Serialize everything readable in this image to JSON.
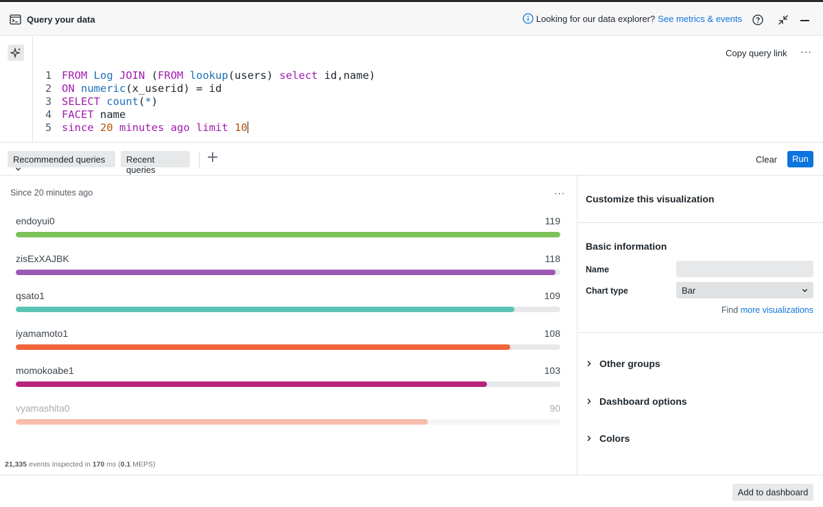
{
  "header": {
    "title": "Query your data",
    "info_text": "Looking for our data explorer?",
    "info_link": "See metrics & events"
  },
  "editor": {
    "copy_link": "Copy query link",
    "more": "···",
    "lines": [
      {
        "n": "1"
      },
      {
        "n": "2"
      },
      {
        "n": "3"
      },
      {
        "n": "4"
      },
      {
        "n": "5"
      }
    ],
    "tokens": {
      "l1a": "FROM",
      "l1b": "Log",
      "l1c": "JOIN",
      "l1d": "(",
      "l1e": "FROM",
      "l1f": "lookup",
      "l1g": "(users)",
      "l1h": "select",
      "l1i": "id,name)",
      "l2a": "ON",
      "l2b": "numeric",
      "l2c": "(x_userid) = id",
      "l3a": "SELECT",
      "l3b": "count",
      "l3c": "(",
      "l3d": "*",
      "l3e": ")",
      "l4a": "FACET",
      "l4b": "name",
      "l5a": "since",
      "l5b": "20",
      "l5c": "minutes",
      "l5d": "ago",
      "l5e": "limit",
      "l5f": "10"
    }
  },
  "toolbar": {
    "recommended": "Recommended queries",
    "recent": "Recent queries",
    "clear": "Clear",
    "run": "Run"
  },
  "chart": {
    "since": "Since 20 minutes ago",
    "more": "···",
    "stats": {
      "events": "21,335",
      "events_suffix": "events inspected in",
      "ms": "170",
      "ms_suffix": "ms (",
      "meps": "0.1",
      "meps_suffix": "MEPS)"
    }
  },
  "chart_data": {
    "type": "bar",
    "title": "",
    "xlabel": "",
    "ylabel": "",
    "categories": [
      "endoyui0",
      "zisExXAJBK",
      "qsato1",
      "iyamamoto1",
      "momokoabe1",
      "vyamashita0"
    ],
    "values": [
      119,
      118,
      109,
      108,
      103,
      90
    ],
    "ylim": [
      0,
      119
    ],
    "colors": [
      "#7bc25a",
      "#9b59b6",
      "#5bc4b4",
      "#f2653d",
      "#b8237b",
      "#f5a58f"
    ]
  },
  "customize": {
    "title": "Customize this visualization",
    "basic": "Basic information",
    "name_label": "Name",
    "name_value": "",
    "type_label": "Chart type",
    "type_value": "Bar",
    "find_text": "Find",
    "find_link": "more visualizations",
    "groups": [
      "Other groups",
      "Dashboard options",
      "Colors"
    ]
  },
  "footer": {
    "add_dashboard": "Add to dashboard"
  }
}
